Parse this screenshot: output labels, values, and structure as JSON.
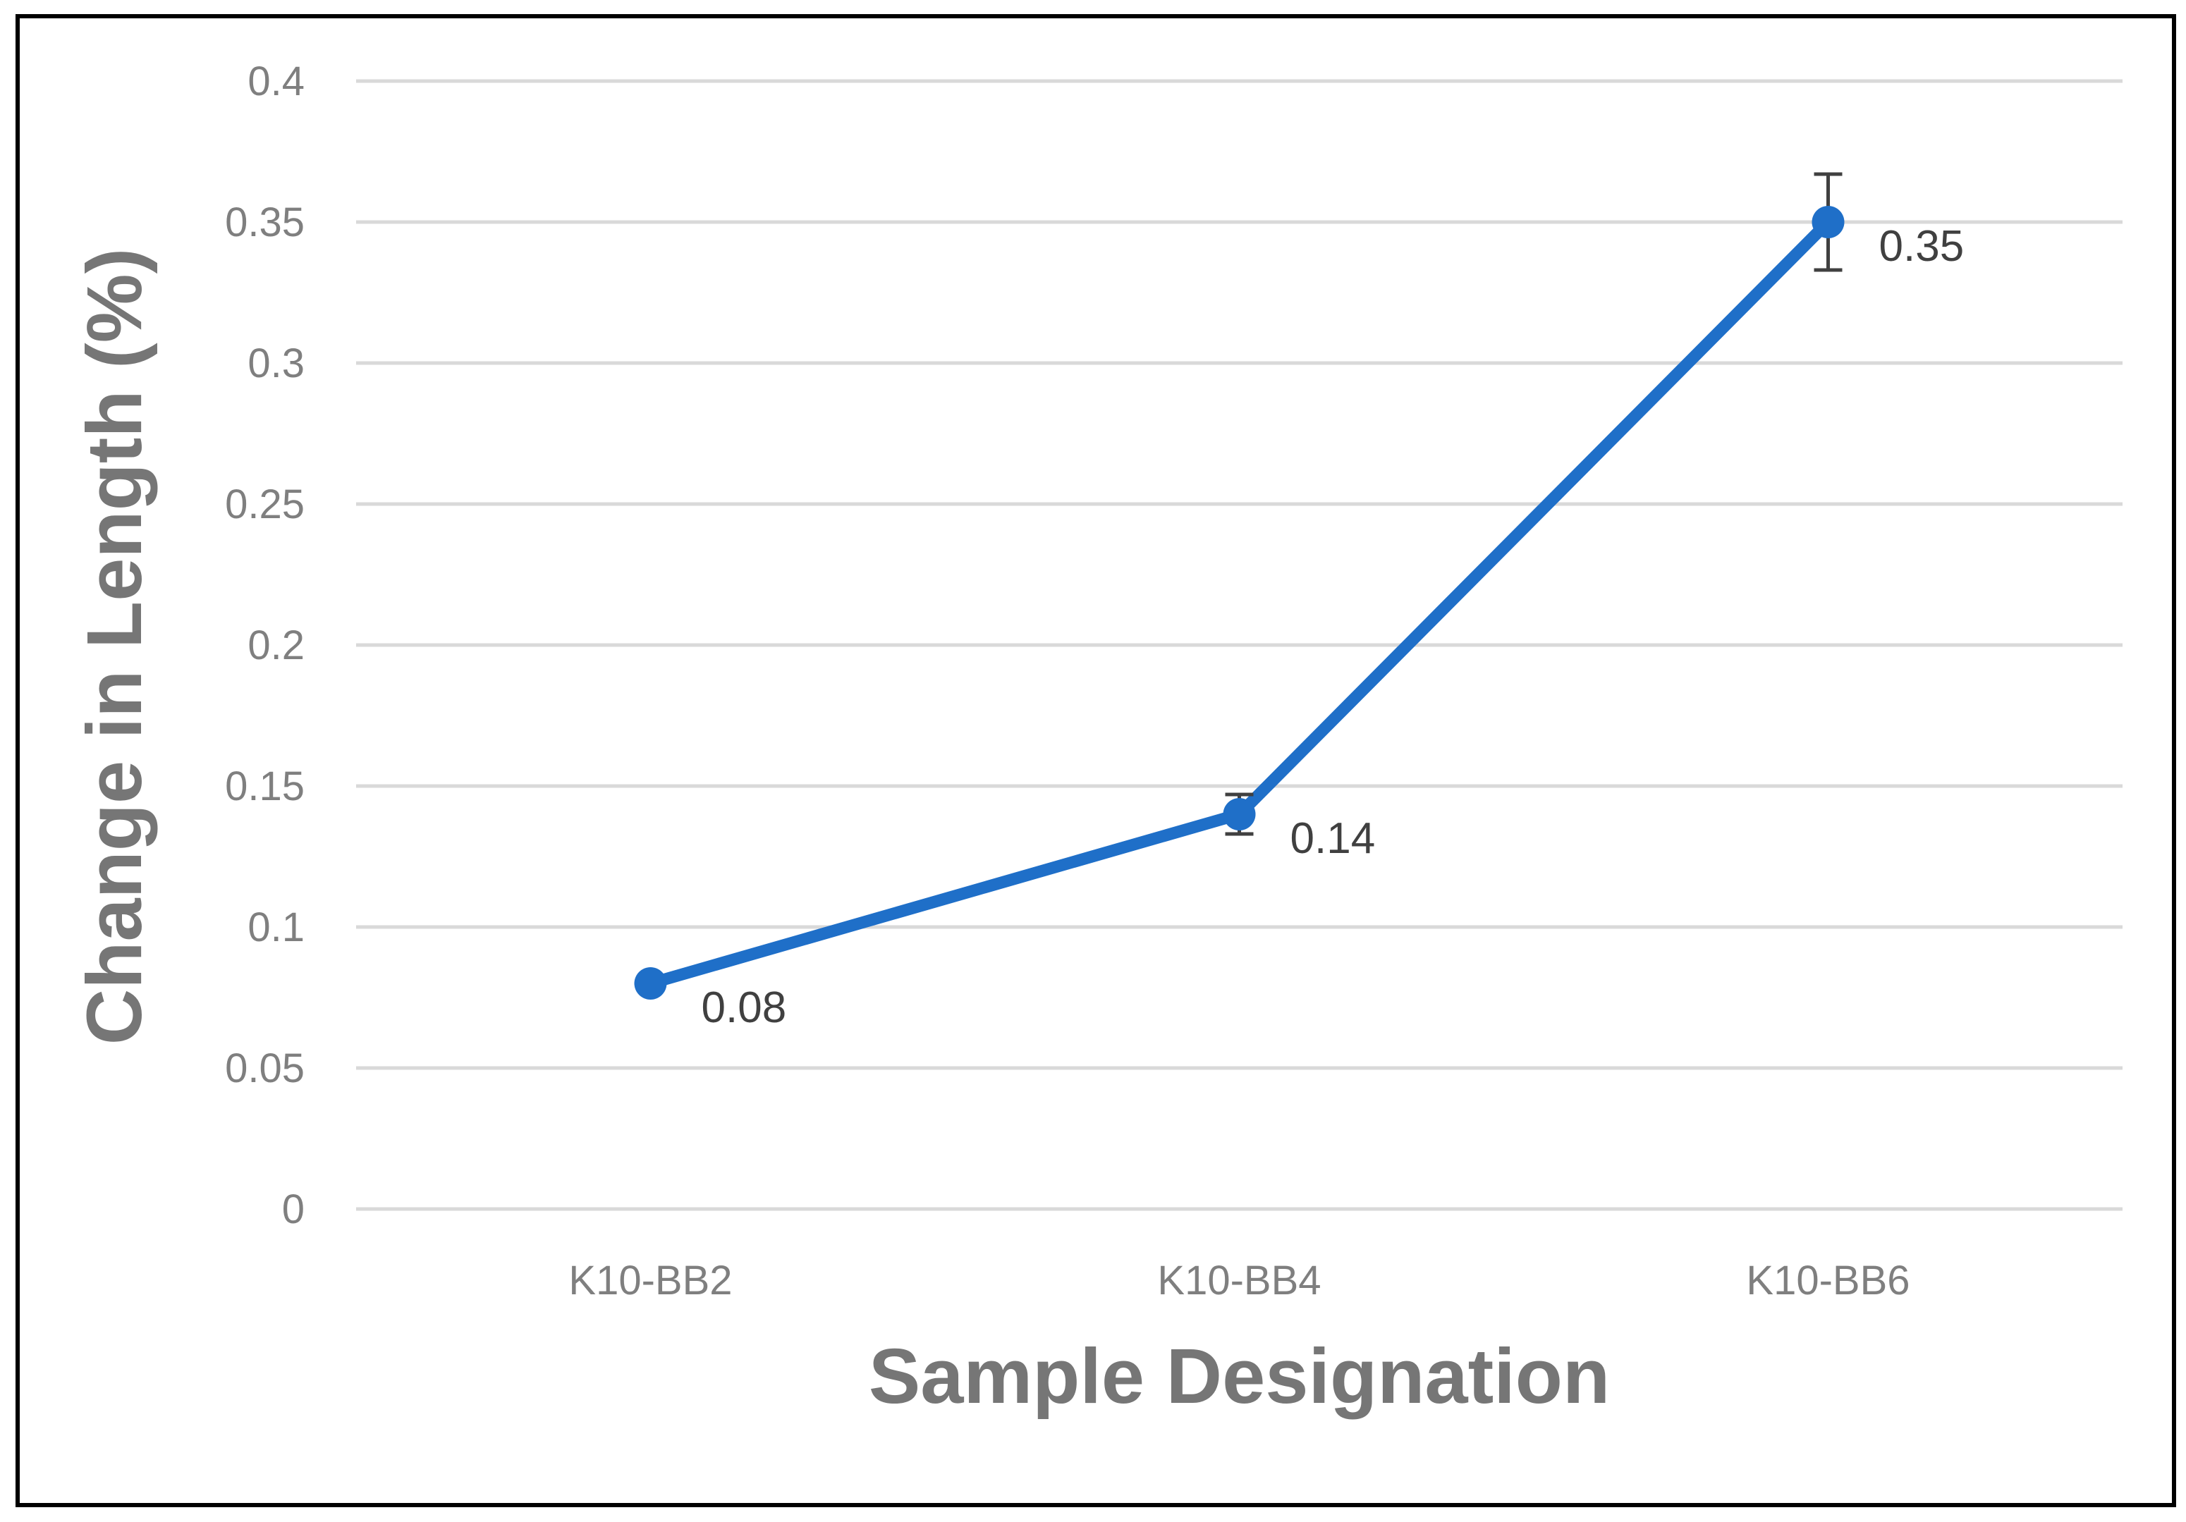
{
  "chart_data": {
    "type": "line",
    "title": "",
    "xlabel": "Sample Designation",
    "ylabel": "Change in Length (%)",
    "categories": [
      "K10-BB2",
      "K10-BB4",
      "K10-BB6"
    ],
    "values": [
      0.08,
      0.14,
      0.35
    ],
    "error": [
      0.0,
      0.007,
      0.017
    ],
    "data_labels": [
      "0.08",
      "0.14",
      "0.35"
    ],
    "ylim": [
      0,
      0.4
    ],
    "yticks": [
      0,
      0.05,
      0.1,
      0.15,
      0.2,
      0.25,
      0.3,
      0.35,
      0.4
    ],
    "ytick_labels": [
      "0",
      "0.05",
      "0.1",
      "0.15",
      "0.2",
      "0.25",
      "0.3",
      "0.35",
      "0.4"
    ],
    "grid": true,
    "legend": "none",
    "colors": {
      "line": "#1f6fc8",
      "grid": "#d9d9d9",
      "error_bar": "#404040"
    }
  }
}
